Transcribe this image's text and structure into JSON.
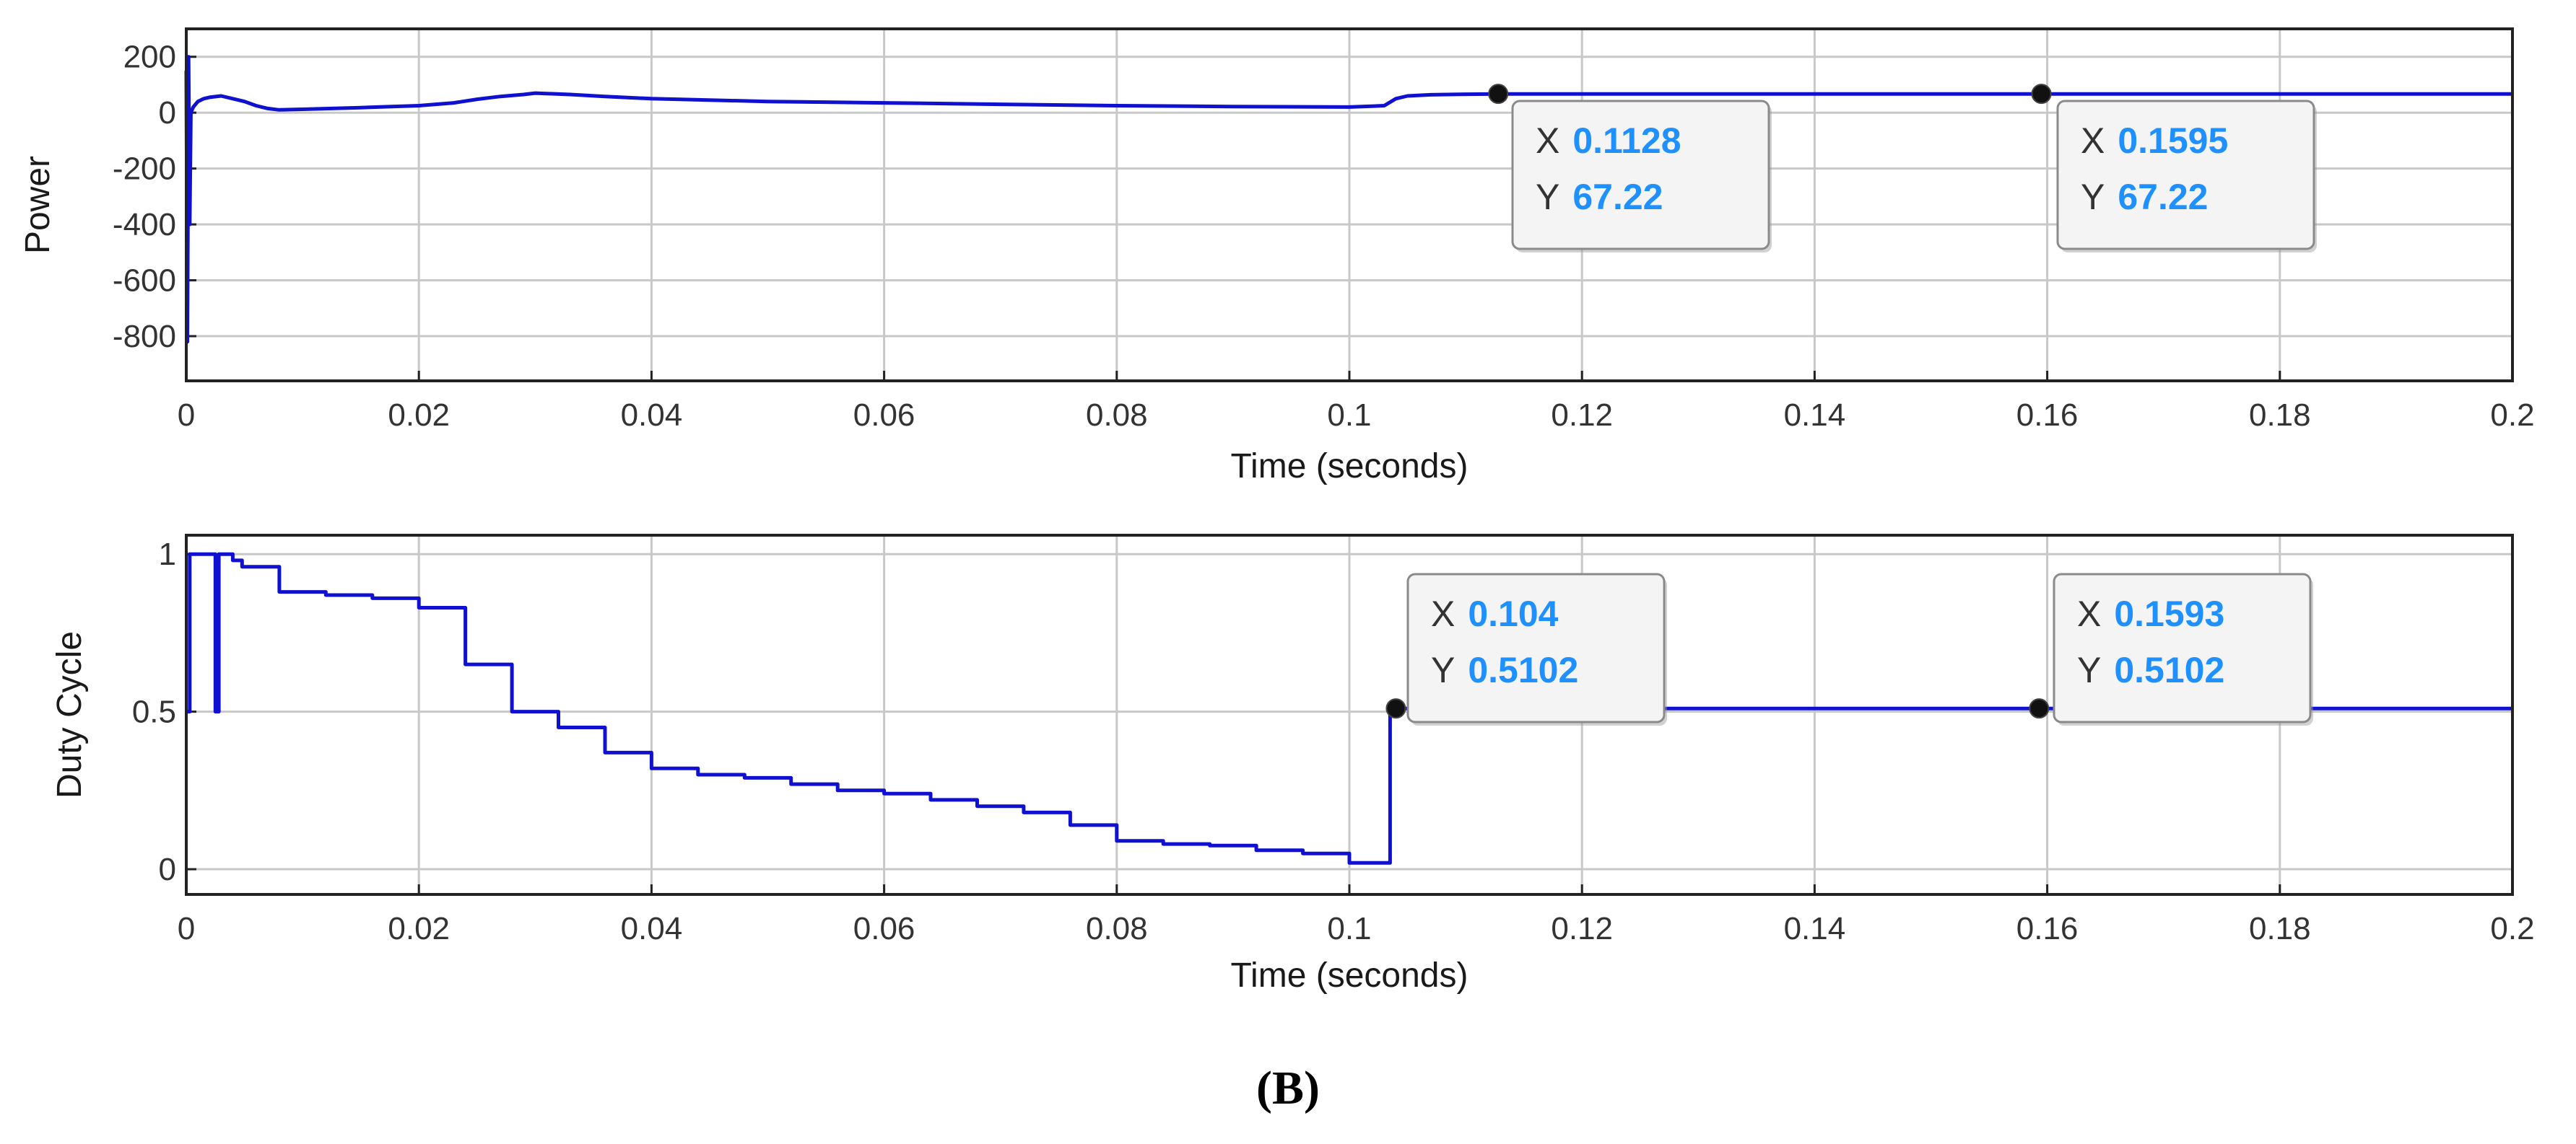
{
  "colors": {
    "line": "#1010d0",
    "grid": "#c8c8c8",
    "axes": "#222222",
    "tip_value": "#1e90ff",
    "marker": "#111111"
  },
  "caption": {
    "open": "(",
    "letter": "B",
    "close": ")"
  },
  "chart_data": [
    {
      "type": "line",
      "name": "power",
      "title": "",
      "xlabel": "Time (seconds)",
      "ylabel": "Power",
      "xlim": [
        0,
        0.2
      ],
      "ylim": [
        -960,
        300
      ],
      "xticks": [
        {
          "v": 0,
          "label": "0"
        },
        {
          "v": 0.02,
          "label": "0.02"
        },
        {
          "v": 0.04,
          "label": "0.04"
        },
        {
          "v": 0.06,
          "label": "0.06"
        },
        {
          "v": 0.08,
          "label": "0.08"
        },
        {
          "v": 0.1,
          "label": "0.1"
        },
        {
          "v": 0.12,
          "label": "0.12"
        },
        {
          "v": 0.14,
          "label": "0.14"
        },
        {
          "v": 0.16,
          "label": "0.16"
        },
        {
          "v": 0.18,
          "label": "0.18"
        },
        {
          "v": 0.2,
          "label": "0.2"
        }
      ],
      "yticks": [
        {
          "v": 200,
          "label": "200"
        },
        {
          "v": 0,
          "label": "0"
        },
        {
          "v": -200,
          "label": "-200"
        },
        {
          "v": -400,
          "label": "-400"
        },
        {
          "v": -600,
          "label": "-600"
        },
        {
          "v": -800,
          "label": "-800"
        }
      ],
      "series": [
        {
          "name": "Power",
          "x": [
            0,
            0.0001,
            0.0002,
            0.0003,
            0.0004,
            0.0006,
            0.001,
            0.0015,
            0.002,
            0.003,
            0.004,
            0.005,
            0.006,
            0.007,
            0.008,
            0.01,
            0.015,
            0.02,
            0.023,
            0.025,
            0.027,
            0.029,
            0.03,
            0.033,
            0.036,
            0.04,
            0.05,
            0.06,
            0.07,
            0.08,
            0.09,
            0.1,
            0.103,
            0.104,
            0.105,
            0.107,
            0.11,
            0.1128,
            0.14,
            0.1595,
            0.2
          ],
          "y": [
            150,
            -820,
            200,
            -400,
            0,
            20,
            40,
            50,
            55,
            60,
            50,
            40,
            25,
            15,
            10,
            12,
            18,
            25,
            35,
            48,
            58,
            65,
            70,
            65,
            58,
            50,
            40,
            35,
            30,
            25,
            22,
            20,
            25,
            50,
            60,
            64,
            66,
            67.22,
            67.22,
            67.22,
            67.22
          ]
        }
      ],
      "datatips": [
        {
          "x_key": "X",
          "x_text": "0.1128",
          "y_key": "Y",
          "y_text": "67.22",
          "x": 0.1128,
          "y": 67.22
        },
        {
          "x_key": "X",
          "x_text": "0.1595",
          "y_key": "Y",
          "y_text": "67.22",
          "x": 0.1595,
          "y": 67.22
        }
      ]
    },
    {
      "type": "line",
      "name": "duty",
      "title": "",
      "xlabel": "Time (seconds)",
      "ylabel": "Duty Cycle",
      "xlim": [
        0,
        0.2
      ],
      "ylim": [
        -0.08,
        1.06
      ],
      "xticks": [
        {
          "v": 0,
          "label": "0"
        },
        {
          "v": 0.02,
          "label": "0.02"
        },
        {
          "v": 0.04,
          "label": "0.04"
        },
        {
          "v": 0.06,
          "label": "0.06"
        },
        {
          "v": 0.08,
          "label": "0.08"
        },
        {
          "v": 0.1,
          "label": "0.1"
        },
        {
          "v": 0.12,
          "label": "0.12"
        },
        {
          "v": 0.14,
          "label": "0.14"
        },
        {
          "v": 0.16,
          "label": "0.16"
        },
        {
          "v": 0.18,
          "label": "0.18"
        },
        {
          "v": 0.2,
          "label": "0.2"
        }
      ],
      "yticks": [
        {
          "v": 1,
          "label": "1"
        },
        {
          "v": 0.5,
          "label": "0.5"
        },
        {
          "v": 0,
          "label": "0"
        }
      ],
      "series": [
        {
          "name": "Duty Cycle",
          "x": [
            0,
            0.0003,
            0.0003,
            0.0025,
            0.0025,
            0.0028,
            0.0028,
            0.004,
            0.004,
            0.0048,
            0.0048,
            0.008,
            0.008,
            0.012,
            0.012,
            0.016,
            0.016,
            0.02,
            0.02,
            0.024,
            0.024,
            0.028,
            0.028,
            0.032,
            0.032,
            0.036,
            0.036,
            0.04,
            0.04,
            0.044,
            0.044,
            0.048,
            0.048,
            0.052,
            0.052,
            0.056,
            0.056,
            0.06,
            0.06,
            0.064,
            0.064,
            0.068,
            0.068,
            0.072,
            0.072,
            0.076,
            0.076,
            0.08,
            0.08,
            0.084,
            0.084,
            0.088,
            0.088,
            0.092,
            0.092,
            0.096,
            0.096,
            0.1,
            0.1,
            0.1035,
            0.1035,
            0.104,
            0.2
          ],
          "y": [
            0.5,
            0.5,
            1,
            1,
            0.5,
            0.5,
            1,
            1,
            0.98,
            0.98,
            0.96,
            0.96,
            0.88,
            0.88,
            0.87,
            0.87,
            0.86,
            0.86,
            0.83,
            0.83,
            0.65,
            0.65,
            0.5,
            0.5,
            0.45,
            0.45,
            0.37,
            0.37,
            0.32,
            0.32,
            0.3,
            0.3,
            0.29,
            0.29,
            0.27,
            0.27,
            0.25,
            0.25,
            0.24,
            0.24,
            0.22,
            0.22,
            0.2,
            0.2,
            0.18,
            0.18,
            0.14,
            0.14,
            0.09,
            0.09,
            0.08,
            0.08,
            0.075,
            0.075,
            0.06,
            0.06,
            0.05,
            0.05,
            0.02,
            0.02,
            0.5102,
            0.5102,
            0.5102
          ]
        }
      ],
      "datatips": [
        {
          "x_key": "X",
          "x_text": "0.104",
          "y_key": "Y",
          "y_text": "0.5102",
          "x": 0.104,
          "y": 0.5102
        },
        {
          "x_key": "X",
          "x_text": "0.1593",
          "y_key": "Y",
          "y_text": "0.5102",
          "x": 0.1593,
          "y": 0.5102
        }
      ]
    }
  ]
}
